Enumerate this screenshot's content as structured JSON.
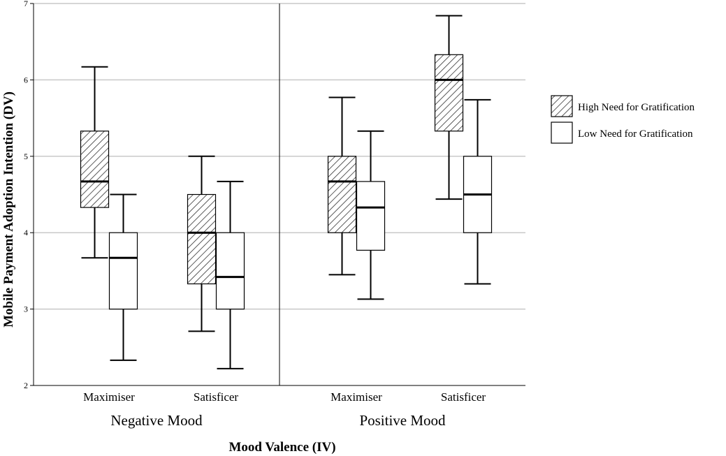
{
  "chart_data": {
    "type": "boxplot",
    "ylabel": "Mobile Payment Adoption Intention (DV)",
    "xlabel": "Mood Valence (IV)",
    "ylim": [
      2,
      7
    ],
    "yticks": [
      2,
      3,
      4,
      5,
      6,
      7
    ],
    "gridlines": [
      3,
      4,
      5,
      6,
      7
    ],
    "panels": [
      {
        "name": "Negative Mood",
        "categories": [
          "Maximiser",
          "Satisficer"
        ],
        "groups": [
          {
            "category": "Maximiser",
            "series": "High Need for Gratification",
            "min": 3.67,
            "q1": 4.33,
            "median": 4.67,
            "q3": 5.33,
            "max": 6.17
          },
          {
            "category": "Maximiser",
            "series": "Low Need for Gratification",
            "min": 2.33,
            "q1": 3.0,
            "median": 3.67,
            "q3": 4.0,
            "max": 4.5
          },
          {
            "category": "Satisficer",
            "series": "High Need for Gratification",
            "min": 2.71,
            "q1": 3.33,
            "median": 4.0,
            "q3": 4.5,
            "max": 5.0
          },
          {
            "category": "Satisficer",
            "series": "Low Need for Gratification",
            "min": 2.22,
            "q1": 3.0,
            "median": 3.42,
            "q3": 4.0,
            "max": 4.67
          }
        ]
      },
      {
        "name": "Positive Mood",
        "categories": [
          "Maximiser",
          "Satisficer"
        ],
        "groups": [
          {
            "category": "Maximiser",
            "series": "High Need for Gratification",
            "min": 3.45,
            "q1": 4.0,
            "median": 4.67,
            "q3": 5.0,
            "max": 5.77
          },
          {
            "category": "Maximiser",
            "series": "Low Need for Gratification",
            "min": 3.13,
            "q1": 3.77,
            "median": 4.33,
            "q3": 4.67,
            "max": 5.33
          },
          {
            "category": "Satisficer",
            "series": "High Need for Gratification",
            "min": 4.44,
            "q1": 5.33,
            "median": 6.0,
            "q3": 6.33,
            "max": 6.84
          },
          {
            "category": "Satisficer",
            "series": "Low Need for Gratification",
            "min": 3.33,
            "q1": 4.0,
            "median": 4.5,
            "q3": 5.0,
            "max": 5.74
          }
        ]
      }
    ],
    "legend": {
      "position": "right",
      "entries": [
        {
          "label": "High Need for Gratification",
          "fill": "hatched"
        },
        {
          "label": "Low Need for Gratification",
          "fill": "white"
        }
      ]
    }
  }
}
